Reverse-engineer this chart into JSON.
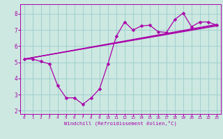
{
  "xlabel": "Windchill (Refroidissement éolien,°C)",
  "bg_color": "#cce8e0",
  "line_color": "#aa00aa",
  "grid_color": "#99cccc",
  "xlim": [
    -0.5,
    23.5
  ],
  "ylim": [
    1.8,
    8.6
  ],
  "xticks": [
    0,
    1,
    2,
    3,
    4,
    5,
    6,
    7,
    8,
    9,
    10,
    11,
    12,
    13,
    14,
    15,
    16,
    17,
    18,
    19,
    20,
    21,
    22,
    23
  ],
  "yticks": [
    2,
    3,
    4,
    5,
    6,
    7,
    8
  ],
  "line1_x": [
    0,
    1,
    2,
    3,
    4,
    5,
    6,
    7,
    8,
    9,
    10,
    11,
    12,
    13,
    14,
    15,
    16,
    17,
    18,
    19,
    20,
    21,
    22,
    23
  ],
  "line1_y": [
    5.2,
    5.2,
    5.05,
    4.9,
    3.55,
    2.8,
    2.8,
    2.4,
    2.8,
    3.35,
    4.9,
    6.6,
    7.5,
    7.0,
    7.25,
    7.3,
    6.9,
    6.85,
    7.65,
    8.05,
    7.2,
    7.5,
    7.5,
    7.3
  ],
  "line2_x": [
    0,
    23
  ],
  "line2_y": [
    5.2,
    7.3
  ],
  "line3_x": [
    0,
    23
  ],
  "line3_y": [
    5.2,
    7.35
  ],
  "line4_x": [
    0,
    23
  ],
  "line4_y": [
    5.2,
    7.25
  ],
  "markersize": 2.5,
  "linewidth": 0.9
}
